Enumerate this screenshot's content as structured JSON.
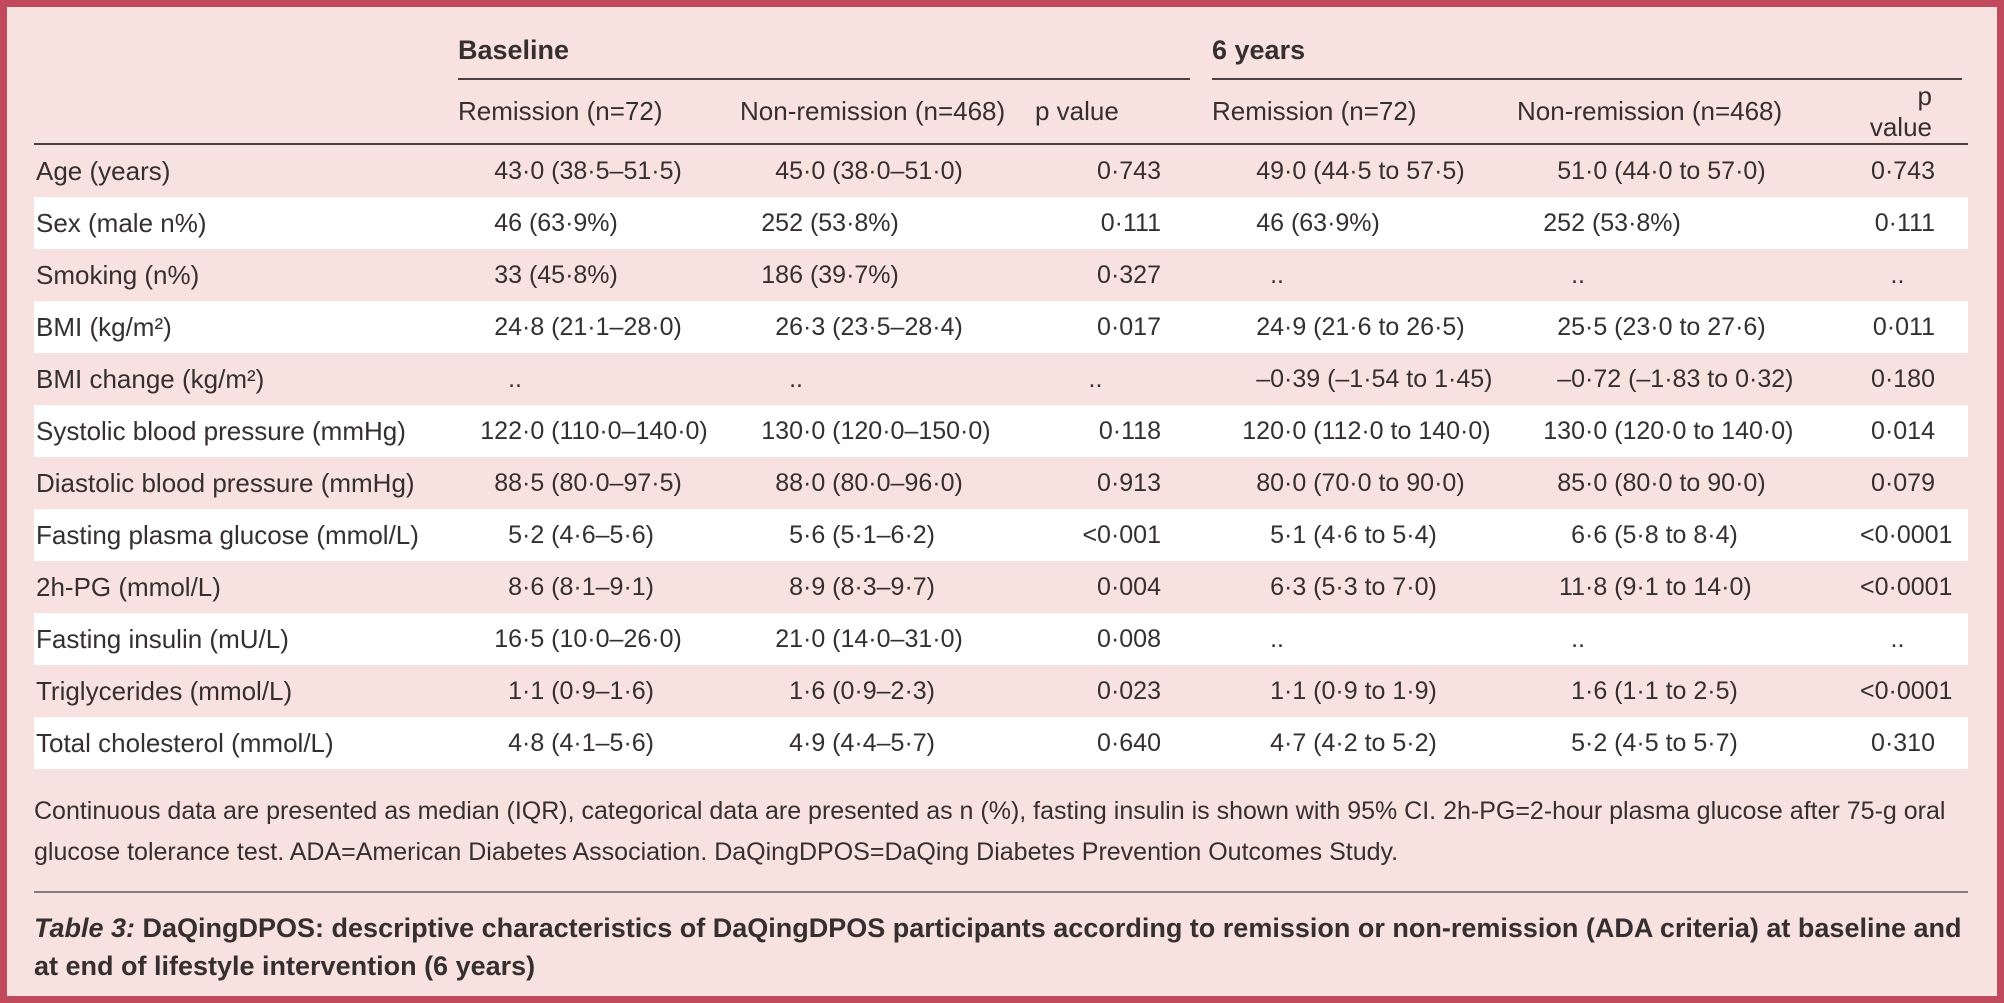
{
  "colors": {
    "panel_background": "#f8e2e0",
    "panel_border": "#c04a5c",
    "row_alt_white": "#ffffff",
    "header_rule": "#4a4243",
    "footnote_rule": "#7e7e7e",
    "text": "#352f30"
  },
  "table": {
    "col_groups": [
      {
        "label": "Baseline"
      },
      {
        "label": "6 years"
      }
    ],
    "sub_headers": [
      "Remission (n=72)",
      "Non-remission (n=468)",
      "p value",
      "Remission (n=72)",
      "Non-remission (n=468)",
      "p value"
    ],
    "rows": [
      {
        "label": "Age (years)",
        "cells": [
          "43·0 (38·5–51·5)",
          "45·0 (38·0–51·0)",
          "0·743",
          "49·0 (44·5 to 57·5)",
          "51·0 (44·0 to 57·0)",
          "0·743"
        ]
      },
      {
        "label": "Sex (male n%)",
        "cells": [
          "46 (63·9%)",
          "252 (53·8%)",
          "0·111",
          "46 (63·9%)",
          "252 (53·8%)",
          "0·111"
        ]
      },
      {
        "label": "Smoking (n%)",
        "cells": [
          "33 (45·8%)",
          "186 (39·7%)",
          "0·327",
          "..",
          "..",
          ".."
        ]
      },
      {
        "label": "BMI (kg/m²)",
        "cells": [
          "24·8 (21·1–28·0)",
          "26·3 (23·5–28·4)",
          "0·017",
          "24·9 (21·6 to 26·5)",
          "25·5 (23·0 to 27·6)",
          "0·011"
        ]
      },
      {
        "label": "BMI change (kg/m²)",
        "cells": [
          "..",
          "..",
          "..",
          "–0·39 (–1·54 to 1·45)",
          "–0·72 (–1·83 to 0·32)",
          "0·180"
        ]
      },
      {
        "label": "Systolic blood pressure (mmHg)",
        "cells": [
          "122·0 (110·0–140·0)",
          "130·0 (120·0–150·0)",
          "0·118",
          "120·0 (112·0 to 140·0)",
          "130·0 (120·0 to 140·0)",
          "0·014"
        ]
      },
      {
        "label": "Diastolic blood pressure (mmHg)",
        "cells": [
          "88·5 (80·0–97·5)",
          "88·0 (80·0–96·0)",
          "0·913",
          "80·0 (70·0 to 90·0)",
          "85·0 (80·0 to 90·0)",
          "0·079"
        ]
      },
      {
        "label": "Fasting plasma glucose (mmol/L)",
        "cells": [
          "5·2 (4·6–5·6)",
          "5·6 (5·1–6·2)",
          "<0·001",
          "5·1 (4·6 to 5·4)",
          "6·6 (5·8 to 8·4)",
          "<0·0001"
        ]
      },
      {
        "label": "2h-PG (mmol/L)",
        "cells": [
          "8·6 (8·1–9·1)",
          "8·9 (8·3–9·7)",
          "0·004",
          "6·3 (5·3 to 7·0)",
          "11·8 (9·1 to 14·0)",
          "<0·0001"
        ]
      },
      {
        "label": "Fasting insulin (mU/L)",
        "cells": [
          "16·5 (10·0–26·0)",
          "21·0 (14·0–31·0)",
          "0·008",
          "..",
          "..",
          ".."
        ]
      },
      {
        "label": "Triglycerides (mmol/L)",
        "cells": [
          "1·1 (0·9–1·6)",
          "1·6 (0·9–2·3)",
          "0·023",
          "1·1 (0·9 to 1·9)",
          "1·6 (1·1 to 2·5)",
          "<0·0001"
        ]
      },
      {
        "label": "Total cholesterol (mmol/L)",
        "cells": [
          "4·8 (4·1–5·6)",
          "4·9 (4·4–5·7)",
          "0·640",
          "4·7 (4·2 to 5·2)",
          "5·2 (4·5 to 5·7)",
          "0·310"
        ]
      }
    ]
  },
  "footnote": "Continuous data are presented as median (IQR), categorical data are presented as n (%), fasting insulin is shown with 95% CI. 2h-PG=2-hour plasma glucose after 75-g oral glucose tolerance test. ADA=American Diabetes Association. DaQingDPOS=DaQing Diabetes Prevention Outcomes Study.",
  "caption": {
    "prefix": "Table 3:",
    "text": " DaQingDPOS: descriptive characteristics of DaQingDPOS participants according to remission or non-remission (ADA criteria) at baseline and at end of lifestyle intervention (6 years)"
  }
}
